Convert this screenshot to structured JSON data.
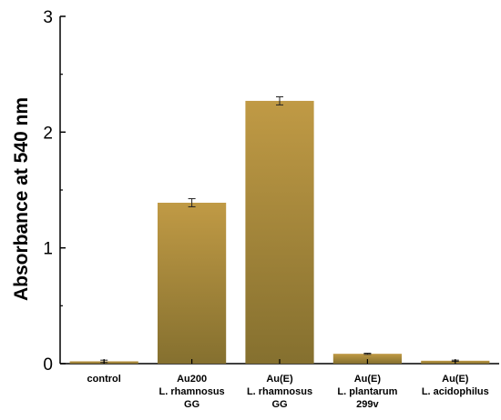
{
  "chart_data": {
    "type": "bar",
    "title": "",
    "xlabel": "",
    "ylabel": "Absorbance at 540 nm",
    "ylim": [
      0,
      3
    ],
    "y_ticks": [
      "0",
      "1",
      "2",
      "3"
    ],
    "grid": false,
    "categories": [
      [
        "control"
      ],
      [
        "Au200",
        "L. rhamnosus",
        "GG"
      ],
      [
        "Au(E)",
        "L. rhamnosus",
        "GG"
      ],
      [
        "Au(E)",
        "L. plantarum",
        "299v"
      ],
      [
        "Au(E)",
        "L. acidophilus"
      ]
    ],
    "values": [
      0.02,
      1.39,
      2.27,
      0.085,
      0.025
    ],
    "errors": [
      0.01,
      0.035,
      0.035,
      0.005,
      0.005
    ],
    "bar_color_top": "#c09a45",
    "bar_color_bottom": "#85702f"
  }
}
